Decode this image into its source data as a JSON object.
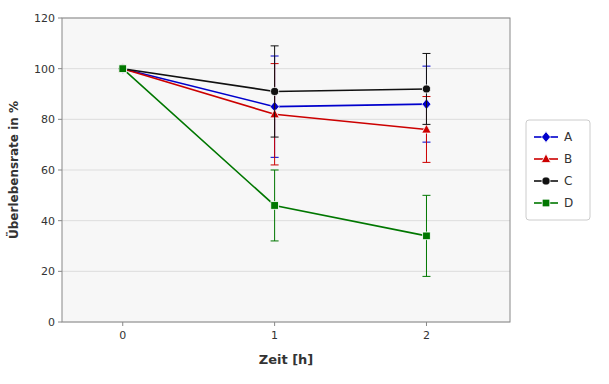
{
  "chart_data": {
    "type": "line",
    "x": [
      0,
      1,
      2
    ],
    "series": [
      {
        "name": "A",
        "color": "#0000CC",
        "marker": "diamond",
        "values": [
          100,
          85,
          86
        ],
        "yerr": [
          0,
          20,
          15
        ]
      },
      {
        "name": "B",
        "color": "#CC0000",
        "marker": "triangle",
        "values": [
          100,
          82,
          76
        ],
        "yerr": [
          0,
          20,
          13
        ]
      },
      {
        "name": "C",
        "color": "#111111",
        "marker": "circle",
        "values": [
          100,
          91,
          92
        ],
        "yerr": [
          0,
          18,
          14
        ]
      },
      {
        "name": "D",
        "color": "#007700",
        "marker": "square",
        "values": [
          100,
          46,
          34
        ],
        "yerr": [
          0,
          14,
          16
        ]
      }
    ],
    "xlabel": "Zeit [h]",
    "ylabel": "Überlebensrate in %",
    "xlim": [
      -0.4,
      2.55
    ],
    "xticks": [
      0,
      1,
      2
    ],
    "ylim": [
      0,
      120
    ],
    "yticks": [
      0,
      20,
      40,
      60,
      80,
      100,
      120
    ],
    "grid": true,
    "legend": "right"
  }
}
